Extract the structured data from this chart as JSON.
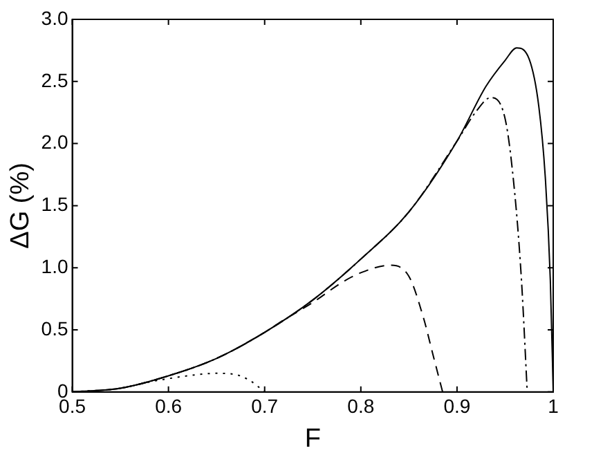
{
  "chart_data": {
    "type": "line",
    "xlabel": "F",
    "ylabel": "ΔG (%)",
    "xlim": [
      0.5,
      1
    ],
    "xticks": [
      0.5,
      0.6,
      0.7,
      0.8,
      0.9,
      1
    ],
    "ylim": [
      0,
      3
    ],
    "yticks": [
      0,
      0.5,
      {
        "value": 1,
        "label": "1.0"
      },
      1.5,
      {
        "value": 2,
        "label": "2.0"
      },
      2.5,
      {
        "value": 3,
        "label": "3.0"
      }
    ],
    "grid": false,
    "legend": false,
    "marker": "none",
    "series": [
      {
        "color": "#000000",
        "line_style": "solid",
        "x": [
          0.5,
          0.55,
          0.6,
          0.65,
          0.7,
          0.75,
          0.8,
          0.85,
          0.9,
          0.93,
          0.95,
          0.962,
          0.975,
          0.985,
          0.992,
          0.997,
          1.0
        ],
        "values": [
          0,
          0.03,
          0.13,
          0.27,
          0.48,
          0.74,
          1.07,
          1.45,
          2.02,
          2.46,
          2.67,
          2.77,
          2.68,
          2.3,
          1.7,
          0.9,
          0
        ]
      },
      {
        "color": "#000000",
        "line_style": "dashdot",
        "x": [
          0.5,
          0.55,
          0.6,
          0.65,
          0.7,
          0.75,
          0.8,
          0.85,
          0.9,
          0.92,
          0.935,
          0.95,
          0.96,
          0.967,
          0.973
        ],
        "values": [
          0,
          0.03,
          0.13,
          0.27,
          0.48,
          0.74,
          1.07,
          1.45,
          2.02,
          2.26,
          2.37,
          2.2,
          1.6,
          0.9,
          0
        ]
      },
      {
        "color": "#000000",
        "line_style": "dashed",
        "x": [
          0.5,
          0.55,
          0.6,
          0.65,
          0.7,
          0.72,
          0.75,
          0.78,
          0.8,
          0.83,
          0.85,
          0.865,
          0.875,
          0.885
        ],
        "values": [
          0,
          0.03,
          0.13,
          0.27,
          0.48,
          0.58,
          0.72,
          0.88,
          0.96,
          1.02,
          0.93,
          0.6,
          0.3,
          0
        ]
      },
      {
        "color": "#000000",
        "line_style": "dotted",
        "x": [
          0.5,
          0.55,
          0.58,
          0.62,
          0.65,
          0.67,
          0.685,
          0.7
        ],
        "values": [
          0,
          0.03,
          0.08,
          0.13,
          0.15,
          0.14,
          0.09,
          0
        ]
      }
    ]
  }
}
